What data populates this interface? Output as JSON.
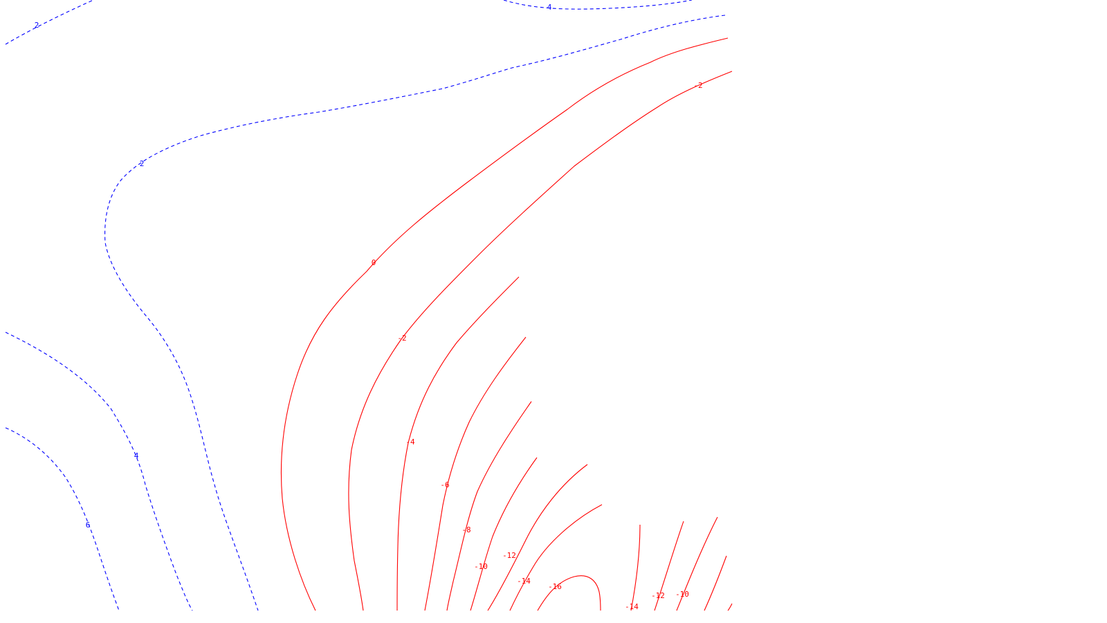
{
  "chart_data": {
    "type": "contour",
    "colors": {
      "positive": "#0000ff",
      "negative": "#ff0000",
      "background": "#ffffff"
    },
    "positive_style": "dashed",
    "negative_style": "solid",
    "grid": false,
    "legend": "none",
    "levels": [
      {
        "value": 6,
        "text": "6"
      },
      {
        "value": 4,
        "text": "4"
      },
      {
        "value": 2,
        "text": "2"
      },
      {
        "value": 0,
        "text": "0"
      },
      {
        "value": -2,
        "text": "-2"
      },
      {
        "value": -4,
        "text": "-4"
      },
      {
        "value": -6,
        "text": "-6"
      },
      {
        "value": -8,
        "text": "-8"
      },
      {
        "value": -10,
        "text": "-10"
      },
      {
        "value": -12,
        "text": "-12"
      },
      {
        "value": -14,
        "text": "-14"
      },
      {
        "value": -16,
        "text": "-16"
      }
    ]
  }
}
